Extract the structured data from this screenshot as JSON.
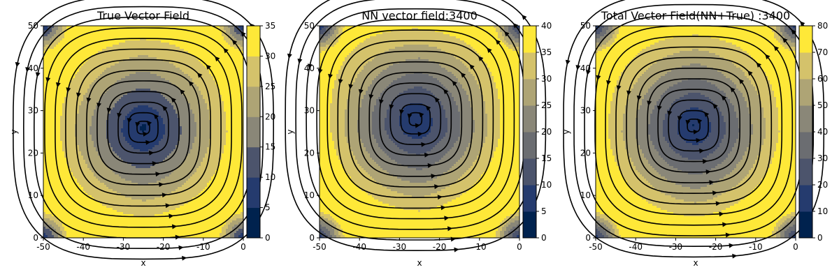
{
  "chart_data": [
    {
      "type": "streamplot",
      "title": "True Vector Field",
      "xlabel": "x",
      "ylabel": "y",
      "xlim": [
        -50,
        0
      ],
      "ylim": [
        0,
        50
      ],
      "xticks": [
        "-50",
        "-40",
        "-30",
        "-20",
        "-10",
        "0"
      ],
      "yticks": [
        "0",
        "10",
        "20",
        "30",
        "40",
        "50"
      ],
      "vortex_center": [
        -25,
        26
      ],
      "colorbar": {
        "min": 0,
        "max": 35,
        "ticks": [
          "0",
          "5",
          "10",
          "15",
          "20",
          "25",
          "30",
          "35"
        ]
      },
      "colormap": "cividis"
    },
    {
      "type": "streamplot",
      "title": "NN vector field:3400",
      "xlabel": "x",
      "ylabel": "y",
      "xlim": [
        -50,
        0
      ],
      "ylim": [
        0,
        50
      ],
      "xticks": [
        "-50",
        "-40",
        "-30",
        "-20",
        "-10",
        "0"
      ],
      "yticks": [
        "0",
        "10",
        "20",
        "30",
        "40",
        "50"
      ],
      "vortex_center": [
        -26,
        28
      ],
      "colorbar": {
        "min": 0,
        "max": 40,
        "ticks": [
          "0",
          "5",
          "10",
          "15",
          "20",
          "25",
          "30",
          "35",
          "40"
        ]
      },
      "colormap": "cividis"
    },
    {
      "type": "streamplot",
      "title": "Total Vector Field(NN+True) :3400",
      "xlabel": "x",
      "ylabel": "y",
      "xlim": [
        -50,
        0
      ],
      "ylim": [
        0,
        50
      ],
      "xticks": [
        "-50",
        "-40",
        "-30",
        "-20",
        "-10",
        "0"
      ],
      "yticks": [
        "0",
        "10",
        "20",
        "30",
        "40",
        "50"
      ],
      "vortex_center": [
        -25.5,
        26.5
      ],
      "colorbar": {
        "min": 0,
        "max": 80,
        "ticks": [
          "0",
          "10",
          "20",
          "30",
          "40",
          "50",
          "60",
          "70",
          "80"
        ]
      },
      "colormap": "cividis"
    }
  ]
}
